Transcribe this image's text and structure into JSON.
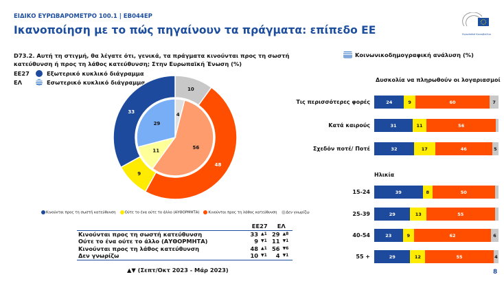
{
  "header": {
    "super": "ΕΙΔΙΚΟ ΕΥΡΩΒΑΡΟΜΕΤΡΟ 100.1 | EB044EP",
    "title": "Ικανοποίηση με το πώς πηγαίνουν τα πράγματα: επίπεδο ΕΕ",
    "logo_text": "Ευρωπαϊκό Κοινοβούλιο"
  },
  "question": "D73.2. Αυτή τη στιγμή, θα λέγατε ότι, γενικά, τα πράγματα κινούνται προς τη σωστή κατεύθυνση ή προς τη λάθος κατεύθυνση; Στην Ευρωπαϊκή Ένωση (%)",
  "legend_top": [
    {
      "code": "ΕΕ27",
      "label": "Εξωτερικό κυκλικό διάγραμμα"
    },
    {
      "code": "ΕΛ",
      "label": "Εσωτερικό κυκλικό διάγραμμα"
    }
  ],
  "colors": {
    "right": "#1d4a9c",
    "neither": "#ffeb00",
    "wrong": "#ff4e00",
    "dk": "#c8c8c8",
    "accent": "#1d4e9e"
  },
  "chart_data": [
    {
      "type": "pie",
      "name": "outer",
      "categories": [
        "Κινούνται προς τη σωστή κατεύθυνση",
        "Ούτε το ένα ούτε το άλλο (ΑΥΘΟΡΜΗΤΑ)",
        "Κινούνται προς τη λάθος κατεύθυνση",
        "Δεν γνωρίζω"
      ],
      "EE27": [
        33,
        9,
        48,
        10
      ],
      "EL": [
        29,
        11,
        56,
        4
      ]
    },
    {
      "type": "bar",
      "title": "Δυσκολία να πληρωθούν οι λογαριασμοί",
      "categories": [
        "Τις περισσότερες φορές",
        "Κατά καιρούς",
        "Σχεδόν ποτέ/ Ποτέ"
      ],
      "values": [
        [
          24,
          9,
          60,
          7
        ],
        [
          31,
          11,
          56,
          2
        ],
        [
          32,
          17,
          46,
          5
        ]
      ],
      "labels": [
        [
          "24",
          "9",
          "60",
          "7"
        ],
        [
          "31",
          "11",
          "56",
          ""
        ],
        [
          "32",
          "17",
          "46",
          "5"
        ]
      ]
    },
    {
      "type": "bar",
      "title": "Ηλικία",
      "categories": [
        "15-24",
        "25-39",
        "40-54",
        "55 +"
      ],
      "values": [
        [
          39,
          8,
          50,
          3
        ],
        [
          29,
          13,
          55,
          3
        ],
        [
          23,
          9,
          62,
          6
        ],
        [
          29,
          12,
          55,
          4
        ]
      ],
      "labels": [
        [
          "39",
          "8",
          "50",
          ""
        ],
        [
          "29",
          "13",
          "55",
          ""
        ],
        [
          "23",
          "9",
          "62",
          "6"
        ],
        [
          "29",
          "12",
          "55",
          "4"
        ]
      ]
    }
  ],
  "legend_bottom": [
    "Κινούνται προς τη σωστή κατεύθυνση",
    "Ούτε το ένα ούτε το άλλο (ΑΥΘΟΡΜΗΤΑ)",
    "Κινούνται προς τη λάθος κατεύθυνση",
    "Δεν γνωρίζω"
  ],
  "table": {
    "headers": [
      "ΕΕ27",
      "ΕΛ"
    ],
    "rows": [
      {
        "label": "Κινούνται προς τη σωστή κατεύθυνση",
        "eu": "33",
        "euc": "▲1",
        "el": "29",
        "elc": "▲8"
      },
      {
        "label": "Ούτε το ένα ούτε το άλλο (ΑΥΘΟΡΜΗΤΑ)",
        "eu": "9",
        "euc": "▼1",
        "el": "11",
        "elc": "▼1"
      },
      {
        "label": "Κινούνται προς τη λάθος κατεύθυνση",
        "eu": "48",
        "euc": "▲1",
        "el": "56",
        "elc": "▼6"
      },
      {
        "label": "Δεν γνωρίζω",
        "eu": "10",
        "euc": "▼1",
        "el": "4",
        "elc": "▼1"
      }
    ],
    "note": "▲▼ (Σεπτ/Οκτ 2023 - Μάρ 2023)"
  },
  "right": {
    "title": "Κοινωνικοδημογραφική ανάλυση (%)"
  },
  "page": "8"
}
